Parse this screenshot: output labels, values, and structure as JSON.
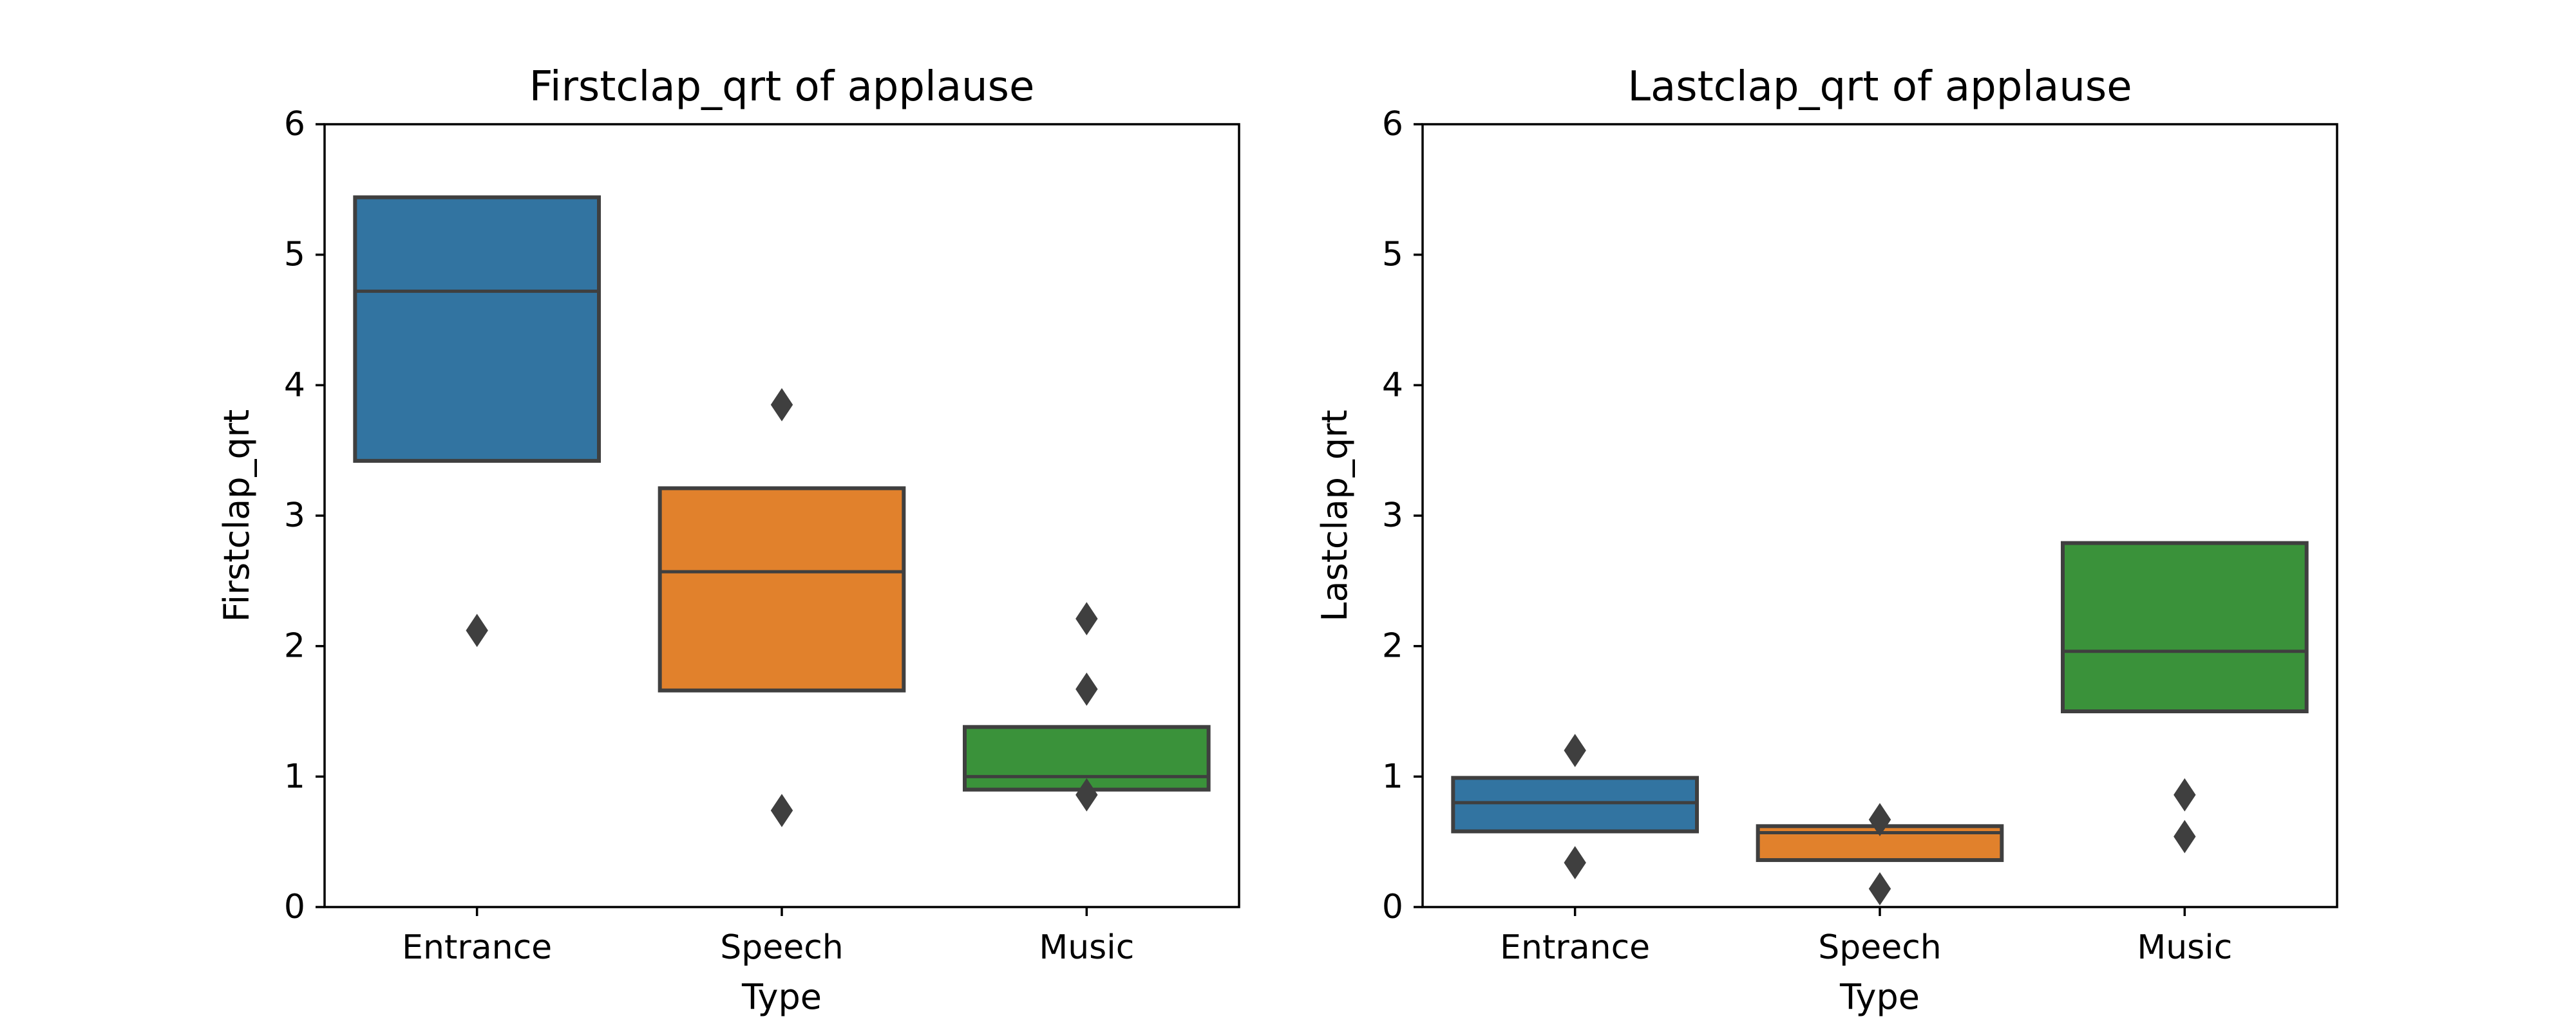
{
  "chart_data": [
    {
      "type": "boxen",
      "title": "Firstclap_qrt of applause",
      "xlabel": "Type",
      "ylabel": "Firstclap_qrt",
      "ylim": [
        0,
        6
      ],
      "yticks": [
        0,
        1,
        2,
        3,
        4,
        5,
        6
      ],
      "categories": [
        "Entrance",
        "Speech",
        "Music"
      ],
      "colors": [
        "#3274a1",
        "#e1812c",
        "#3a923a"
      ],
      "boxes": [
        {
          "category": "Entrance",
          "q1": 3.42,
          "median": 4.72,
          "q3": 5.44,
          "outliers": [
            2.12
          ]
        },
        {
          "category": "Speech",
          "q1": 1.66,
          "median": 2.57,
          "q3": 3.21,
          "outliers": [
            3.85,
            0.74
          ]
        },
        {
          "category": "Music",
          "q1": 0.9,
          "median": 1.0,
          "q3": 1.38,
          "outliers": [
            2.21,
            1.67,
            0.86
          ]
        }
      ]
    },
    {
      "type": "boxen",
      "title": "Lastclap_qrt of applause",
      "xlabel": "Type",
      "ylabel": "Lastclap_qrt",
      "ylim": [
        0,
        6
      ],
      "yticks": [
        0,
        1,
        2,
        3,
        4,
        5,
        6
      ],
      "categories": [
        "Entrance",
        "Speech",
        "Music"
      ],
      "colors": [
        "#3274a1",
        "#e1812c",
        "#3a923a"
      ],
      "boxes": [
        {
          "category": "Entrance",
          "q1": 0.58,
          "median": 0.8,
          "q3": 0.99,
          "outliers": [
            1.2,
            0.34
          ]
        },
        {
          "category": "Speech",
          "q1": 0.36,
          "median": 0.57,
          "q3": 0.62,
          "outliers": [
            0.67,
            0.14
          ]
        },
        {
          "category": "Music",
          "q1": 1.5,
          "median": 1.96,
          "q3": 2.79,
          "outliers": [
            0.86,
            0.54
          ]
        }
      ]
    }
  ]
}
